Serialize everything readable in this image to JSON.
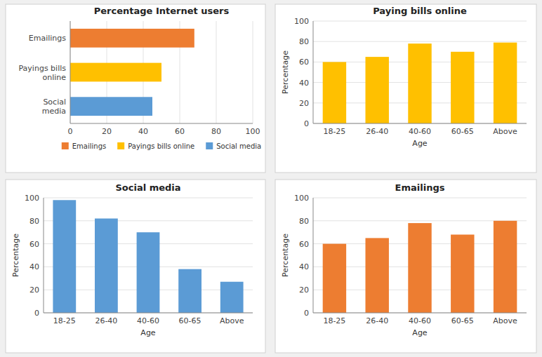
{
  "chart_data": [
    {
      "type": "bar",
      "title": "Percentage Internet users",
      "orientation": "horizontal",
      "stacked": true,
      "categories": [
        "Social\nmedia",
        "Payings bills\nonline",
        "Emailings"
      ],
      "series": [
        {
          "name": "Emailings",
          "color": "#ED7D31",
          "values": [
            null,
            null,
            68
          ]
        },
        {
          "name": "Payings bills online",
          "color": "#FFC000",
          "values": [
            null,
            50,
            null
          ]
        },
        {
          "name": "Social media",
          "color": "#5B9BD5",
          "values": [
            45,
            null,
            null
          ]
        }
      ],
      "xlim": [
        0,
        100
      ],
      "xticks": [
        0,
        20,
        40,
        60,
        80,
        100
      ],
      "grid": true,
      "legend": "bottom"
    },
    {
      "type": "bar",
      "title": "Paying bills online",
      "xlabel": "Age",
      "ylabel": "Percentage",
      "categories": [
        "18-25",
        "26-40",
        "40-60",
        "60-65",
        "Above"
      ],
      "values": [
        60,
        65,
        78,
        70,
        79
      ],
      "color": "#FFC000",
      "ylim": [
        0,
        100
      ],
      "yticks": [
        0,
        20,
        40,
        60,
        80,
        100
      ],
      "grid": true
    },
    {
      "type": "bar",
      "title": "Social media",
      "xlabel": "Age",
      "ylabel": "Percentage",
      "categories": [
        "18-25",
        "26-40",
        "40-60",
        "60-65",
        "Above"
      ],
      "values": [
        98,
        82,
        70,
        38,
        27
      ],
      "color": "#5B9BD5",
      "ylim": [
        0,
        100
      ],
      "yticks": [
        0,
        20,
        40,
        60,
        80,
        100
      ],
      "grid": true
    },
    {
      "type": "bar",
      "title": "Emailings",
      "xlabel": "Age",
      "ylabel": "Percentage",
      "categories": [
        "18-25",
        "26-40",
        "40-60",
        "60-65",
        "Above"
      ],
      "values": [
        60,
        65,
        78,
        68,
        80
      ],
      "color": "#ED7D31",
      "ylim": [
        0,
        100
      ],
      "yticks": [
        0,
        20,
        40,
        60,
        80,
        100
      ],
      "grid": true
    }
  ]
}
